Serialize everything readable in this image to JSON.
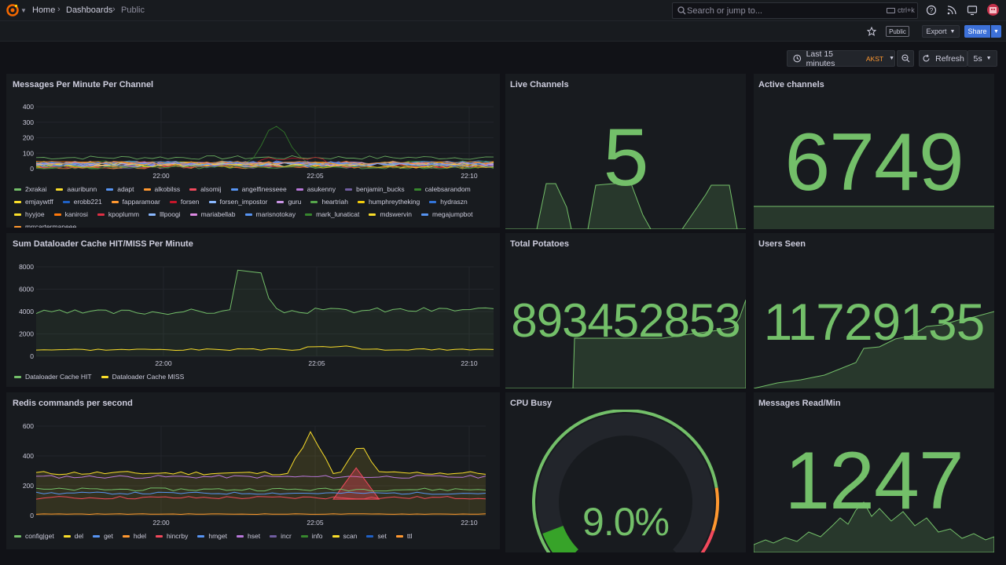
{
  "breadcrumb": {
    "home": "Home",
    "dashboards": "Dashboards",
    "current": "Public"
  },
  "search": {
    "placeholder": "Search or jump to...",
    "shortcut": "ctrl+k"
  },
  "subbar": {
    "public_badge": "Public",
    "export_label": "Export",
    "share_label": "Share"
  },
  "timepicker": {
    "range": "Last 15 minutes",
    "timezone": "AKST",
    "refresh_label": "Refresh",
    "interval": "5s"
  },
  "colors": {
    "accent_green": "#73bf69",
    "gauge_red": "#f2495c",
    "gauge_orange": "#ff9830",
    "share_blue": "#3d71d9",
    "timezone_orange": "#ff9830"
  },
  "panels": {
    "messages_per_minute": {
      "title": "Messages Per Minute Per Channel",
      "legend": [
        {
          "name": "2xrakai",
          "color": "#73bf69"
        },
        {
          "name": "aauribunn",
          "color": "#fade2a"
        },
        {
          "name": "adapt",
          "color": "#5794f2"
        },
        {
          "name": "alkobilss",
          "color": "#ff9830"
        },
        {
          "name": "alsomij",
          "color": "#f2495c"
        },
        {
          "name": "angelfinesseee",
          "color": "#5794f2"
        },
        {
          "name": "asukenny",
          "color": "#b877d9"
        },
        {
          "name": "benjamin_bucks",
          "color": "#705da0"
        },
        {
          "name": "calebsarandom",
          "color": "#37872d"
        },
        {
          "name": "emjaywtff",
          "color": "#fade2a"
        },
        {
          "name": "erobb221",
          "color": "#1f60c4"
        },
        {
          "name": "fapparamoar",
          "color": "#ff9830"
        },
        {
          "name": "forsen",
          "color": "#c4162a"
        },
        {
          "name": "forsen_impostor",
          "color": "#8ab8ff"
        },
        {
          "name": "guru",
          "color": "#ca95e5"
        },
        {
          "name": "heartriah",
          "color": "#56a64b"
        },
        {
          "name": "humphreytheking",
          "color": "#f2cc0c"
        },
        {
          "name": "hydraszn",
          "color": "#3274d9"
        },
        {
          "name": "hyyjoe",
          "color": "#fade2a"
        },
        {
          "name": "kanirosi",
          "color": "#ff780a"
        },
        {
          "name": "kpoplumm",
          "color": "#e02f44"
        },
        {
          "name": "lllpoogi",
          "color": "#8ab8ff"
        },
        {
          "name": "mariabellab",
          "color": "#de8ae3"
        },
        {
          "name": "marisnotokay",
          "color": "#5794f2"
        },
        {
          "name": "mark_lunaticat",
          "color": "#37872d"
        },
        {
          "name": "mdswervin",
          "color": "#fade2a"
        },
        {
          "name": "megajumpbot",
          "color": "#5794f2"
        },
        {
          "name": "mrrcartermaneee",
          "color": "#ff9830"
        }
      ],
      "y_ticks": [
        "400",
        "300",
        "200",
        "100",
        "0"
      ],
      "x_ticks": [
        "22:00",
        "22:05",
        "22:10"
      ]
    },
    "live_channels": {
      "title": "Live Channels",
      "value": "5"
    },
    "active_channels": {
      "title": "Active channels",
      "value": "6749"
    },
    "dataloader": {
      "title": "Sum Dataloader Cache HIT/MISS Per Minute",
      "legend": [
        {
          "name": "Dataloader Cache HIT",
          "color": "#73bf69"
        },
        {
          "name": "Dataloader Cache MISS",
          "color": "#fade2a"
        }
      ],
      "y_ticks": [
        "8000",
        "6000",
        "4000",
        "2000",
        "0"
      ],
      "x_ticks": [
        "22:00",
        "22:05",
        "22:10"
      ]
    },
    "total_potatoes": {
      "title": "Total Potatoes",
      "value": "893452853"
    },
    "users_seen": {
      "title": "Users Seen",
      "value": "11729135"
    },
    "redis": {
      "title": "Redis commands per second",
      "legend": [
        {
          "name": "config|get",
          "color": "#73bf69"
        },
        {
          "name": "del",
          "color": "#fade2a"
        },
        {
          "name": "get",
          "color": "#5794f2"
        },
        {
          "name": "hdel",
          "color": "#ff9830"
        },
        {
          "name": "hincrby",
          "color": "#f2495c"
        },
        {
          "name": "hmget",
          "color": "#5794f2"
        },
        {
          "name": "hset",
          "color": "#b877d9"
        },
        {
          "name": "incr",
          "color": "#705da0"
        },
        {
          "name": "info",
          "color": "#37872d"
        },
        {
          "name": "scan",
          "color": "#fade2a"
        },
        {
          "name": "set",
          "color": "#1f60c4"
        },
        {
          "name": "ttl",
          "color": "#ff9830"
        }
      ],
      "y_ticks": [
        "600",
        "400",
        "200",
        "0"
      ],
      "x_ticks": [
        "22:00",
        "22:05",
        "22:10"
      ]
    },
    "cpu_busy": {
      "title": "CPU Busy",
      "value": "9.0%",
      "fraction": 0.09
    },
    "messages_read": {
      "title": "Messages Read/Min",
      "value": "1247"
    }
  }
}
